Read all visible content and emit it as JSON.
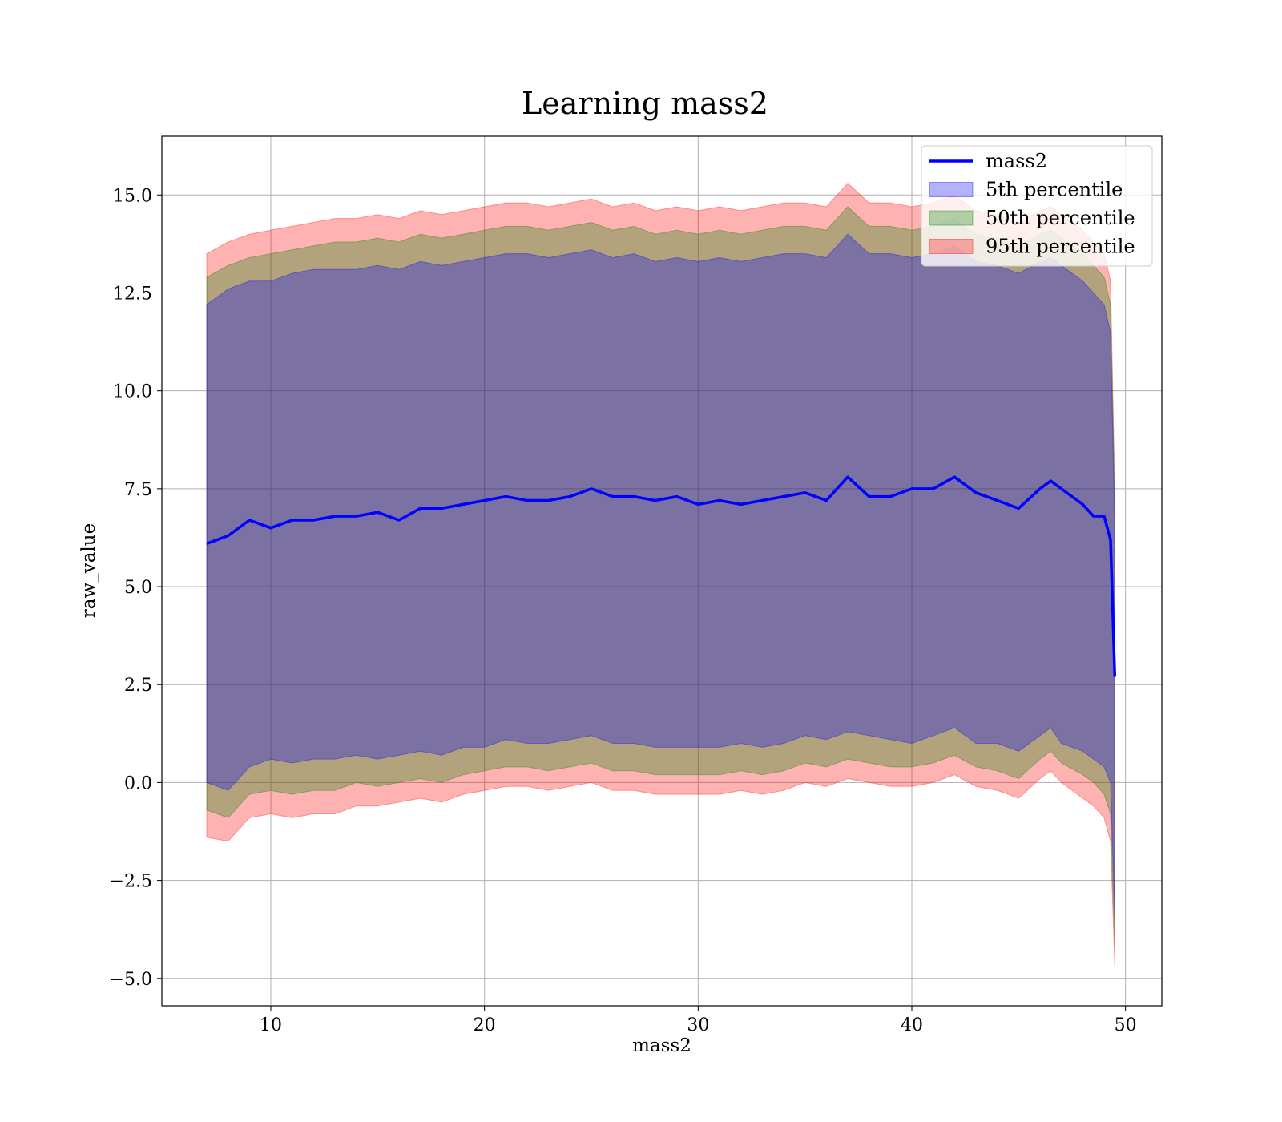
{
  "chart_data": {
    "type": "area",
    "title": "Learning mass2",
    "xlabel": "mass2",
    "ylabel": "raw_value",
    "xlim": [
      4.9,
      51.7
    ],
    "ylim": [
      -5.7,
      16.5
    ],
    "x_ticks": [
      10,
      20,
      30,
      40,
      50
    ],
    "x_tick_labels": [
      "10",
      "20",
      "30",
      "40",
      "50"
    ],
    "y_ticks": [
      -5.0,
      -2.5,
      0.0,
      2.5,
      5.0,
      7.5,
      10.0,
      12.5,
      15.0
    ],
    "y_tick_labels": [
      "−5.0",
      "−2.5",
      "0.0",
      "2.5",
      "5.0",
      "7.5",
      "10.0",
      "12.5",
      "15.0"
    ],
    "grid": true,
    "legend_position": "top-right",
    "legend": [
      {
        "label": "mass2",
        "kind": "line",
        "color": "#0000ff"
      },
      {
        "label": "5th percentile",
        "kind": "band",
        "color": "#0000ff"
      },
      {
        "label": "50th percentile",
        "kind": "band",
        "color": "#008000"
      },
      {
        "label": "95th percentile",
        "kind": "band",
        "color": "#ff0000"
      }
    ],
    "x": [
      7.0,
      8.0,
      9.0,
      10.0,
      11.0,
      12.0,
      13.0,
      14.0,
      15.0,
      16.0,
      17.0,
      18.0,
      19.0,
      20.0,
      21.0,
      22.0,
      23.0,
      24.0,
      25.0,
      26.0,
      27.0,
      28.0,
      29.0,
      30.0,
      31.0,
      32.0,
      33.0,
      34.0,
      35.0,
      36.0,
      37.0,
      38.0,
      39.0,
      40.0,
      41.0,
      42.0,
      43.0,
      44.0,
      45.0,
      46.0,
      46.5,
      47.0,
      48.0,
      48.5,
      49.0,
      49.3,
      49.5
    ],
    "series": [
      {
        "name": "mass2",
        "kind": "line",
        "color": "#0000ff",
        "values": [
          6.1,
          6.3,
          6.7,
          6.5,
          6.7,
          6.7,
          6.8,
          6.8,
          6.9,
          6.7,
          7.0,
          7.0,
          7.1,
          7.2,
          7.3,
          7.2,
          7.2,
          7.3,
          7.5,
          7.3,
          7.3,
          7.2,
          7.3,
          7.1,
          7.2,
          7.1,
          7.2,
          7.3,
          7.4,
          7.2,
          7.8,
          7.3,
          7.3,
          7.5,
          7.5,
          7.8,
          7.4,
          7.2,
          7.0,
          7.5,
          7.7,
          7.5,
          7.1,
          6.8,
          6.8,
          6.2,
          2.7
        ]
      },
      {
        "name": "5th percentile",
        "kind": "band",
        "color": "#0000ff",
        "lower": [
          0.0,
          -0.2,
          0.4,
          0.6,
          0.5,
          0.6,
          0.6,
          0.7,
          0.6,
          0.7,
          0.8,
          0.7,
          0.9,
          0.9,
          1.1,
          1.0,
          1.0,
          1.1,
          1.2,
          1.0,
          1.0,
          0.9,
          0.9,
          0.9,
          0.9,
          1.0,
          0.9,
          1.0,
          1.2,
          1.1,
          1.3,
          1.2,
          1.1,
          1.0,
          1.2,
          1.4,
          1.0,
          1.0,
          0.8,
          1.2,
          1.4,
          1.0,
          0.8,
          0.6,
          0.4,
          0.0,
          -3.5
        ],
        "upper": [
          12.2,
          12.6,
          12.8,
          12.8,
          13.0,
          13.1,
          13.1,
          13.1,
          13.2,
          13.1,
          13.3,
          13.2,
          13.3,
          13.4,
          13.5,
          13.5,
          13.4,
          13.5,
          13.6,
          13.4,
          13.5,
          13.3,
          13.4,
          13.3,
          13.4,
          13.3,
          13.4,
          13.5,
          13.5,
          13.4,
          14.0,
          13.5,
          13.5,
          13.4,
          13.5,
          13.7,
          13.3,
          13.2,
          13.0,
          13.3,
          13.4,
          13.2,
          12.8,
          12.5,
          12.2,
          11.5,
          6.5
        ]
      },
      {
        "name": "50th percentile",
        "kind": "band",
        "color": "#008000",
        "lower": [
          -0.7,
          -0.9,
          -0.3,
          -0.2,
          -0.3,
          -0.2,
          -0.2,
          0.0,
          -0.1,
          0.0,
          0.1,
          0.0,
          0.2,
          0.3,
          0.4,
          0.4,
          0.3,
          0.4,
          0.5,
          0.3,
          0.3,
          0.2,
          0.2,
          0.2,
          0.2,
          0.3,
          0.2,
          0.3,
          0.5,
          0.4,
          0.6,
          0.5,
          0.4,
          0.4,
          0.5,
          0.7,
          0.4,
          0.3,
          0.1,
          0.6,
          0.8,
          0.5,
          0.2,
          0.0,
          -0.3,
          -0.8,
          -4.2
        ],
        "upper": [
          12.9,
          13.2,
          13.4,
          13.5,
          13.6,
          13.7,
          13.8,
          13.8,
          13.9,
          13.8,
          14.0,
          13.9,
          14.0,
          14.1,
          14.2,
          14.2,
          14.1,
          14.2,
          14.3,
          14.1,
          14.2,
          14.0,
          14.1,
          14.0,
          14.1,
          14.0,
          14.1,
          14.2,
          14.2,
          14.1,
          14.7,
          14.2,
          14.2,
          14.1,
          14.2,
          14.4,
          14.0,
          13.9,
          13.7,
          14.0,
          14.1,
          13.9,
          13.5,
          13.2,
          12.9,
          12.2,
          7.0
        ]
      },
      {
        "name": "95th percentile",
        "kind": "band",
        "color": "#ff0000",
        "lower": [
          -1.4,
          -1.5,
          -0.9,
          -0.8,
          -0.9,
          -0.8,
          -0.8,
          -0.6,
          -0.6,
          -0.5,
          -0.4,
          -0.5,
          -0.3,
          -0.2,
          -0.1,
          -0.1,
          -0.2,
          -0.1,
          0.0,
          -0.2,
          -0.2,
          -0.3,
          -0.3,
          -0.3,
          -0.3,
          -0.2,
          -0.3,
          -0.2,
          0.0,
          -0.1,
          0.1,
          0.0,
          -0.1,
          -0.1,
          0.0,
          0.2,
          -0.1,
          -0.2,
          -0.4,
          0.1,
          0.3,
          0.0,
          -0.4,
          -0.6,
          -0.9,
          -1.5,
          -4.7
        ],
        "upper": [
          13.5,
          13.8,
          14.0,
          14.1,
          14.2,
          14.3,
          14.4,
          14.4,
          14.5,
          14.4,
          14.6,
          14.5,
          14.6,
          14.7,
          14.8,
          14.8,
          14.7,
          14.8,
          14.9,
          14.7,
          14.8,
          14.6,
          14.7,
          14.6,
          14.7,
          14.6,
          14.7,
          14.8,
          14.8,
          14.7,
          15.3,
          14.8,
          14.8,
          14.7,
          14.8,
          15.0,
          14.6,
          14.5,
          14.3,
          14.6,
          14.7,
          14.5,
          14.1,
          13.8,
          13.5,
          12.8,
          7.5
        ]
      }
    ]
  }
}
